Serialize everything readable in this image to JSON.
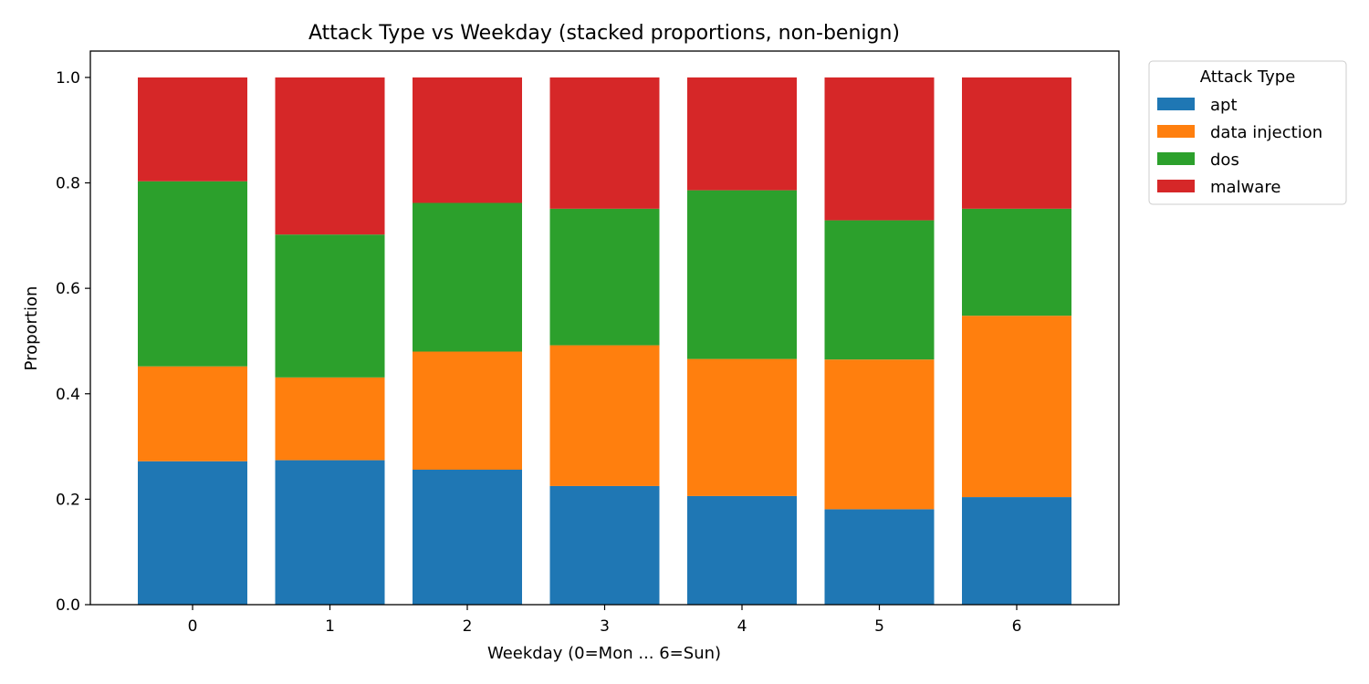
{
  "chart_data": {
    "type": "bar",
    "stacked": true,
    "title": "Attack Type vs Weekday (stacked proportions, non-benign)",
    "xlabel": "Weekday (0=Mon ... 6=Sun)",
    "ylabel": "Proportion",
    "categories": [
      "0",
      "1",
      "2",
      "3",
      "4",
      "5",
      "6"
    ],
    "ylim": [
      0,
      1.05
    ],
    "yticks": [
      "0.0",
      "0.2",
      "0.4",
      "0.6",
      "0.8",
      "1.0"
    ],
    "grid": false,
    "legend": {
      "title": "Attack Type",
      "placement": "outside-top-right"
    },
    "series": [
      {
        "name": "apt",
        "color": "#1f77b4",
        "values": [
          0.272,
          0.274,
          0.256,
          0.225,
          0.206,
          0.181,
          0.204
        ]
      },
      {
        "name": "data injection",
        "color": "#ff7f0e",
        "values": [
          0.18,
          0.157,
          0.224,
          0.267,
          0.26,
          0.284,
          0.344
        ]
      },
      {
        "name": "dos",
        "color": "#2ca02c",
        "values": [
          0.351,
          0.271,
          0.282,
          0.259,
          0.32,
          0.264,
          0.203
        ]
      },
      {
        "name": "malware",
        "color": "#d62728",
        "values": [
          0.197,
          0.298,
          0.238,
          0.249,
          0.214,
          0.271,
          0.249
        ]
      }
    ]
  }
}
